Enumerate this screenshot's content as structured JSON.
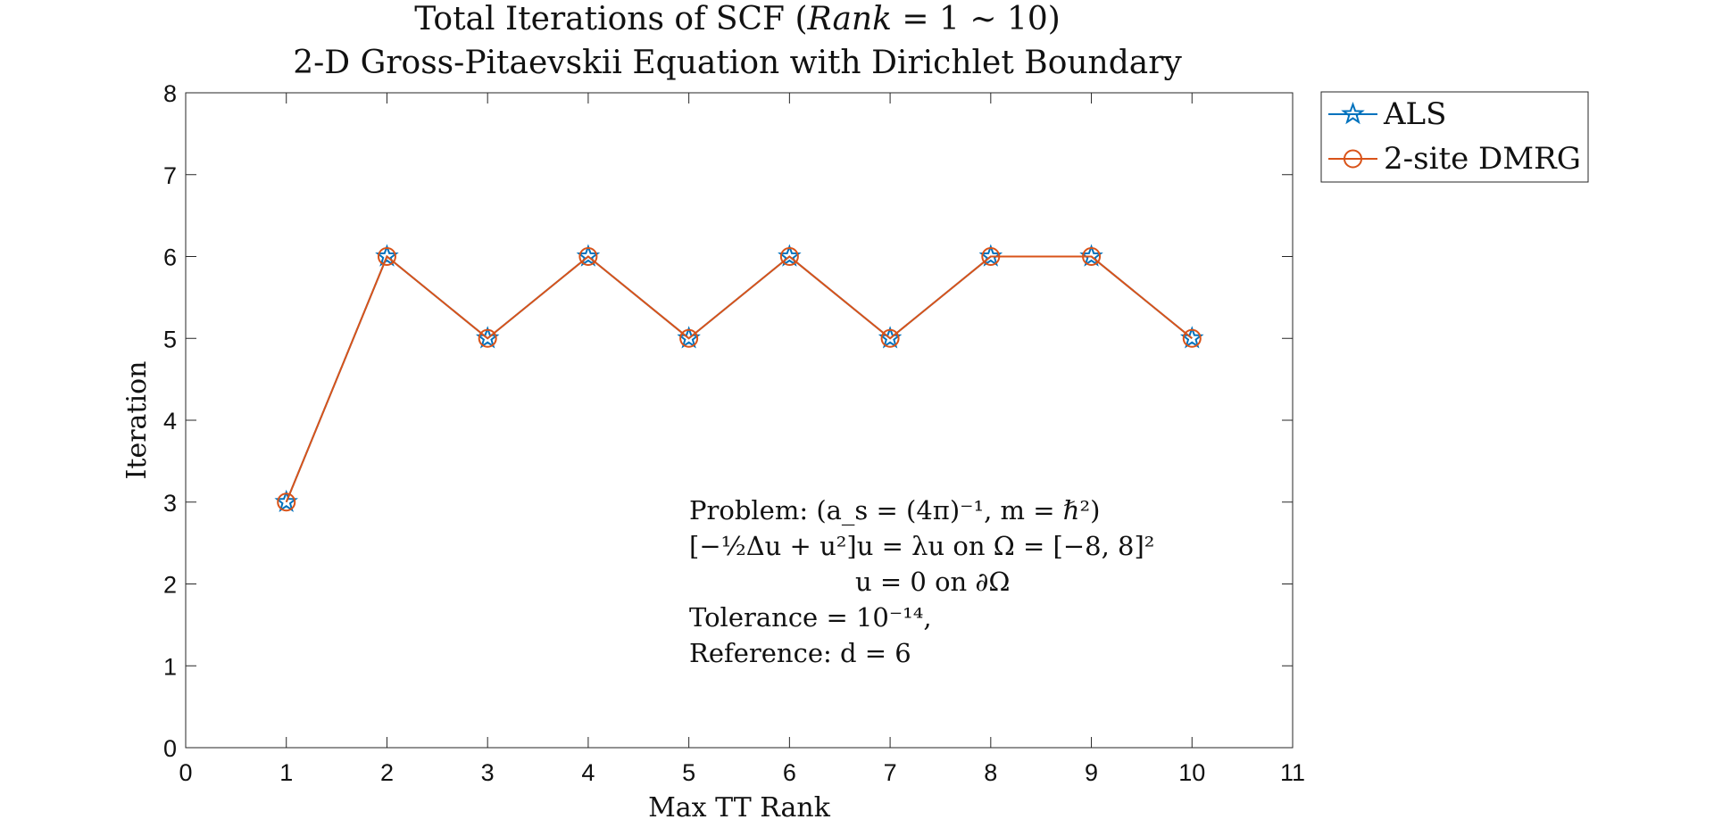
{
  "chart_data": {
    "type": "line",
    "title_line1_pre": "Total Iterations of SCF (",
    "title_line1_math": "Rank",
    "title_line1_post": " = 1 ∼ 10)",
    "title_line2": "2-D Gross-Pitaevskii Equation with Dirichlet Boundary",
    "xlabel": "Max TT Rank",
    "ylabel": "Iteration",
    "xlim": [
      0,
      11
    ],
    "ylim": [
      0,
      8
    ],
    "xticks": [
      "0",
      "1",
      "2",
      "3",
      "4",
      "5",
      "6",
      "7",
      "8",
      "9",
      "10",
      "11"
    ],
    "yticks": [
      "0",
      "1",
      "2",
      "3",
      "4",
      "5",
      "6",
      "7",
      "8"
    ],
    "grid": false,
    "legend_position": "outside-top-right",
    "x": [
      1,
      2,
      3,
      4,
      5,
      6,
      7,
      8,
      9,
      10
    ],
    "series": [
      {
        "name": "ALS",
        "values": [
          3,
          6,
          5,
          6,
          5,
          6,
          5,
          6,
          6,
          5
        ],
        "color": "#0072BD",
        "marker": "star"
      },
      {
        "name": "2-site DMRG",
        "values": [
          3,
          6,
          5,
          6,
          5,
          6,
          5,
          6,
          6,
          5
        ],
        "color": "#D95319",
        "marker": "circle"
      }
    ],
    "annotation": {
      "line1": "Problem:  (a_s = (4π)⁻¹,  m = ℏ²)",
      "line2": "[−½Δu + u²]u = λu   on   Ω = [−8, 8]²",
      "line3": "u = 0      on   ∂Ω",
      "line4": "Tolerance = 10⁻¹⁴,",
      "line5": "Reference: d = 6"
    }
  }
}
